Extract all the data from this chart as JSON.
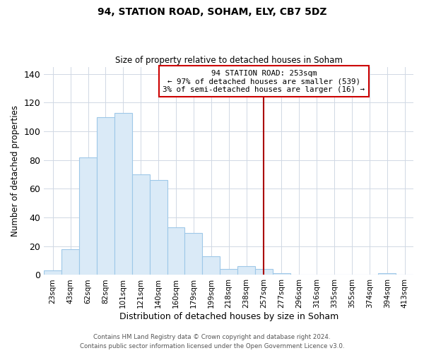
{
  "title": "94, STATION ROAD, SOHAM, ELY, CB7 5DZ",
  "subtitle": "Size of property relative to detached houses in Soham",
  "xlabel": "Distribution of detached houses by size in Soham",
  "ylabel": "Number of detached properties",
  "bar_labels": [
    "23sqm",
    "43sqm",
    "62sqm",
    "82sqm",
    "101sqm",
    "121sqm",
    "140sqm",
    "160sqm",
    "179sqm",
    "199sqm",
    "218sqm",
    "238sqm",
    "257sqm",
    "277sqm",
    "296sqm",
    "316sqm",
    "335sqm",
    "355sqm",
    "374sqm",
    "394sqm",
    "413sqm"
  ],
  "bar_heights": [
    3,
    18,
    82,
    110,
    113,
    70,
    66,
    33,
    29,
    13,
    4,
    6,
    4,
    1,
    0,
    0,
    0,
    0,
    0,
    1,
    0
  ],
  "bar_color": "#daeaf7",
  "bar_edge_color": "#9ec8e8",
  "vline_x": 12,
  "vline_color": "#aa0000",
  "annotation_title": "94 STATION ROAD: 253sqm",
  "annotation_line1": "← 97% of detached houses are smaller (539)",
  "annotation_line2": "3% of semi-detached houses are larger (16) →",
  "ylim": [
    0,
    145
  ],
  "yticks": [
    0,
    20,
    40,
    60,
    80,
    100,
    120,
    140
  ],
  "footer1": "Contains HM Land Registry data © Crown copyright and database right 2024.",
  "footer2": "Contains public sector information licensed under the Open Government Licence v3.0.",
  "bg_color": "#ffffff",
  "grid_color": "#d0d8e4"
}
